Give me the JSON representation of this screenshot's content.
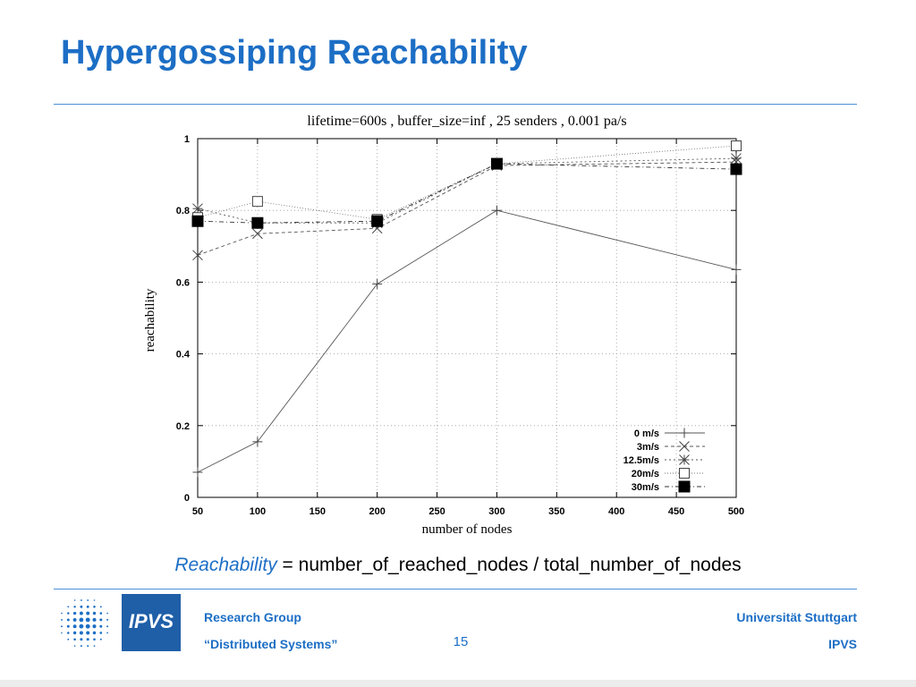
{
  "slide": {
    "title": "Hypergossiping Reachability",
    "formula_term": "Reachability",
    "formula_rest": " = number_of_reached_nodes / total_number_of_nodes",
    "page_number": "15"
  },
  "footer": {
    "group_line1": "Research Group",
    "group_line2": "“Distributed Systems”",
    "university": "Universität Stuttgart",
    "institute": "IPVS",
    "logo_text": "IPVS"
  },
  "colors": {
    "accent": "#1c6ec5",
    "logo_background": "#1f5fa8"
  },
  "chart_data": {
    "type": "line",
    "title": "lifetime=600s , buffer_size=inf , 25 senders , 0.001 pa/s",
    "xlabel": "number of nodes",
    "ylabel": "reachability",
    "xlim": [
      50,
      500
    ],
    "ylim": [
      0,
      1
    ],
    "xticks": [
      "50",
      "100",
      "150",
      "200",
      "250",
      "300",
      "350",
      "400",
      "450",
      "500"
    ],
    "yticks": [
      "0",
      "0.2",
      "0.4",
      "0.6",
      "0.8",
      "1"
    ],
    "grid": true,
    "legend_position": "bottom-right",
    "series": [
      {
        "name": "0 m/s",
        "marker": "plus",
        "x": [
          50,
          100,
          200,
          300,
          500
        ],
        "y": [
          0.07,
          0.155,
          0.595,
          0.8,
          0.635
        ]
      },
      {
        "name": "3m/s",
        "marker": "cross",
        "x": [
          50,
          100,
          200,
          300,
          500
        ],
        "y": [
          0.675,
          0.735,
          0.75,
          0.925,
          0.935
        ]
      },
      {
        "name": "12.5m/s",
        "marker": "star",
        "x": [
          50,
          100,
          200,
          300,
          500
        ],
        "y": [
          0.805,
          0.765,
          0.765,
          0.93,
          0.945
        ]
      },
      {
        "name": "20m/s",
        "marker": "open-square",
        "x": [
          50,
          100,
          200,
          300,
          500
        ],
        "y": [
          0.78,
          0.825,
          0.775,
          0.93,
          0.98
        ]
      },
      {
        "name": "30m/s",
        "marker": "filled-square",
        "x": [
          50,
          100,
          200,
          300,
          500
        ],
        "y": [
          0.77,
          0.765,
          0.77,
          0.93,
          0.915
        ]
      }
    ]
  }
}
